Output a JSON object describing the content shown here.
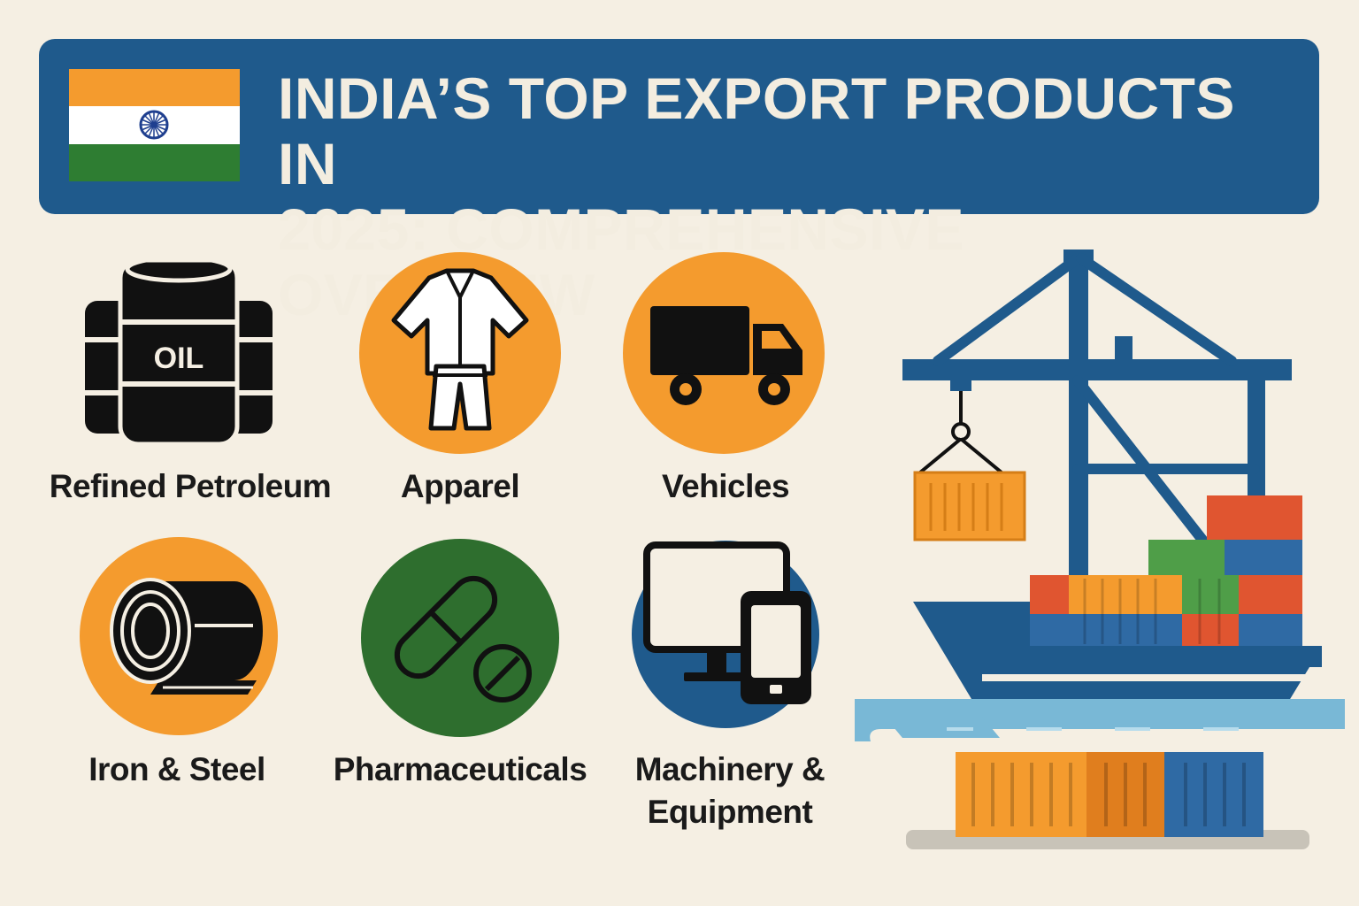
{
  "header": {
    "title_line1": "INDIA’S TOP EXPORT PRODUCTS IN",
    "title_line2": "2025: COMPREHENSIVE OVERVIEW"
  },
  "colors": {
    "navy": "#1f5a8c",
    "orange": "#f49b2e",
    "green": "#2e6e2e",
    "cream": "#f5efe3",
    "ink": "#111111"
  },
  "products": [
    {
      "label": "Refined Petroleum",
      "icon": "oil-barrels-icon",
      "icon_text": "OIL"
    },
    {
      "label": "Apparel",
      "icon": "clothing-icon"
    },
    {
      "label": "Vehicles",
      "icon": "truck-icon"
    },
    {
      "label": "Iron & Steel",
      "icon": "steel-coil-icon"
    },
    {
      "label": "Pharmaceuticals",
      "icon": "pill-icon"
    },
    {
      "label": "Machinery &",
      "label2": "Equipment",
      "icon": "devices-icon"
    }
  ],
  "illustration": {
    "icon": "cargo-ship-crane-icon"
  }
}
